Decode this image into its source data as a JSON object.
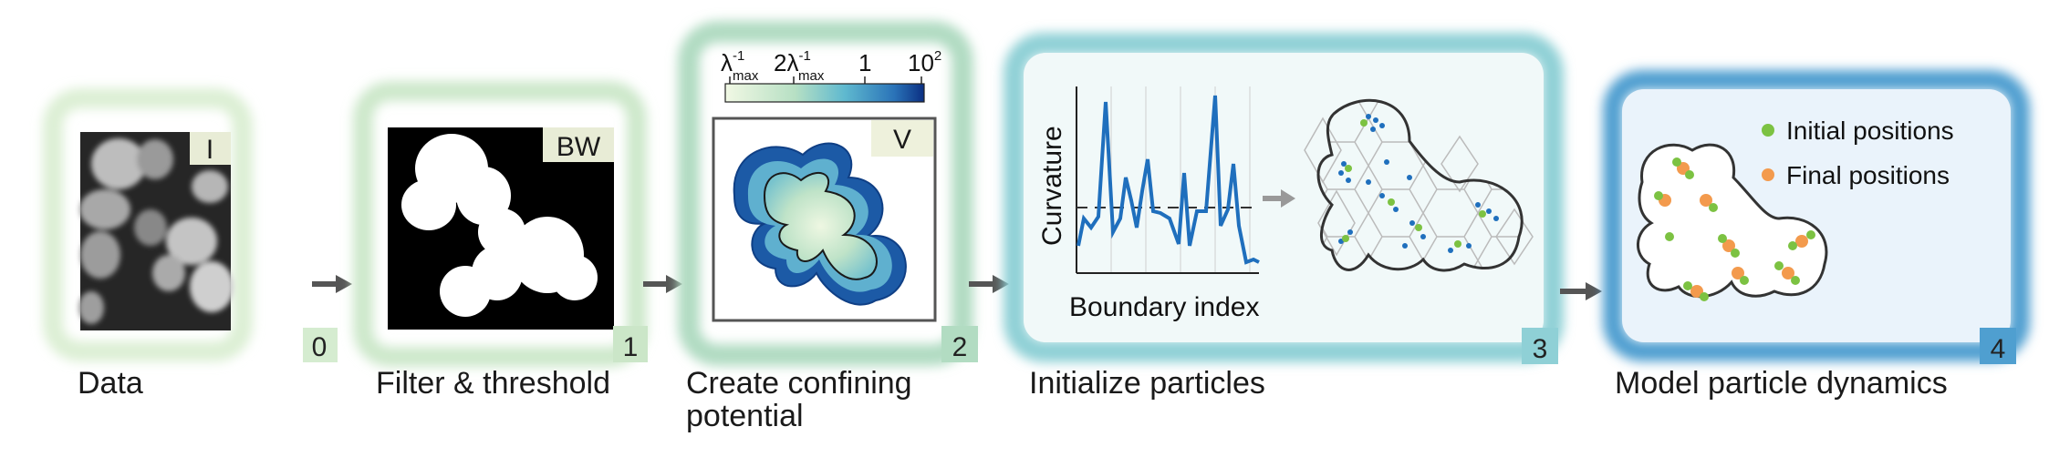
{
  "panels": [
    {
      "index": "0",
      "label": "Data",
      "tag": "I"
    },
    {
      "index": "1",
      "label": "Filter & threshold",
      "tag": "BW"
    },
    {
      "index": "2",
      "label_line1": "Create confining",
      "label_line2": "potential",
      "tag": "V"
    },
    {
      "index": "3",
      "label": "Initialize particles"
    },
    {
      "index": "4",
      "label": "Model particle dynamics"
    }
  ],
  "colorbar": {
    "tick1_main": "λ",
    "tick1_sup": "-1",
    "tick1_sub": "max",
    "tick2_main": "2λ",
    "tick2_sup": "-1",
    "tick2_sub": "max",
    "tick3": "1",
    "tick4_main": "10",
    "tick4_sup": "2"
  },
  "curvature_plot": {
    "ylabel": "Curvature",
    "xlabel": "Boundary index"
  },
  "legend": {
    "initial": "Initial positions",
    "final": "Final positions"
  },
  "colors": {
    "panel0_frame": "#dff0d8",
    "panel1_frame": "#cfe9cd",
    "panel2_frame": "#b2dcc2",
    "panel3_frame": "#8fd0d6",
    "panel4_frame": "#4f9fd0",
    "arrow": "#555555",
    "curve": "#1f6fbd",
    "initial_dot": "#7cc242",
    "final_dot": "#f39a4d"
  }
}
